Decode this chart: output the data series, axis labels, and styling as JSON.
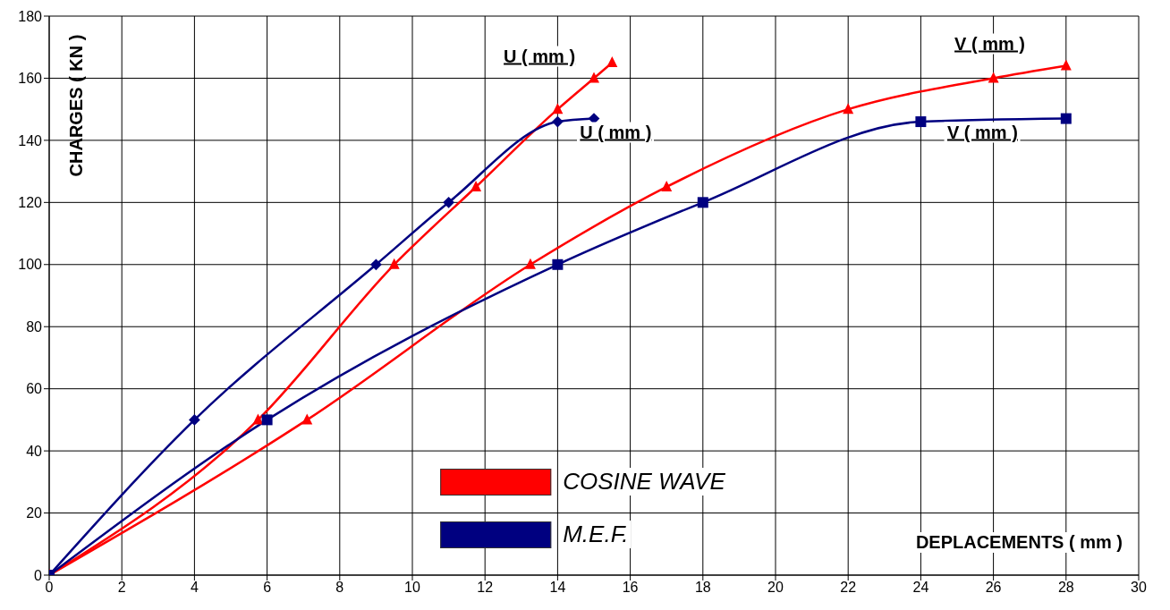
{
  "chart_data": {
    "type": "line",
    "xlabel": "DEPLACEMENTS ( mm )",
    "ylabel": "CHARGES ( KN )",
    "xlim": [
      0,
      30
    ],
    "xticks": [
      0,
      2,
      4,
      6,
      8,
      10,
      12,
      14,
      16,
      18,
      20,
      22,
      24,
      26,
      28,
      30
    ],
    "ylim": [
      0,
      180
    ],
    "yticks": [
      0,
      20,
      40,
      60,
      80,
      100,
      120,
      140,
      160,
      180
    ],
    "grid": true,
    "legend": "bottom",
    "series": [
      {
        "name": "COSINE WAVE",
        "color": "#ff0000",
        "marker": "triangle",
        "x": [
          0,
          5.75,
          9.5,
          11.75,
          14,
          15,
          15.5
        ],
        "values": [
          0,
          50,
          100,
          125,
          150,
          160,
          165
        ]
      },
      {
        "color": "#ff0000",
        "marker": "triangle",
        "x": [
          0,
          7.1,
          13.25,
          17,
          22,
          26,
          28
        ],
        "values": [
          0,
          50,
          100,
          125,
          150,
          160,
          164
        ]
      },
      {
        "name": "M.E.F.",
        "color": "#000080",
        "marker": "square",
        "x": [
          0,
          6,
          14,
          18,
          24,
          28
        ],
        "values": [
          0,
          50,
          100,
          120,
          146,
          147
        ]
      },
      {
        "color": "#000080",
        "marker": "diamond",
        "x": [
          0,
          4,
          9,
          11,
          14,
          15
        ],
        "values": [
          0,
          50,
          100,
          120,
          146,
          147
        ]
      }
    ],
    "annotations": [
      "U ( mm )",
      "U ( mm )",
      "V ( mm )",
      "V ( mm )"
    ]
  }
}
